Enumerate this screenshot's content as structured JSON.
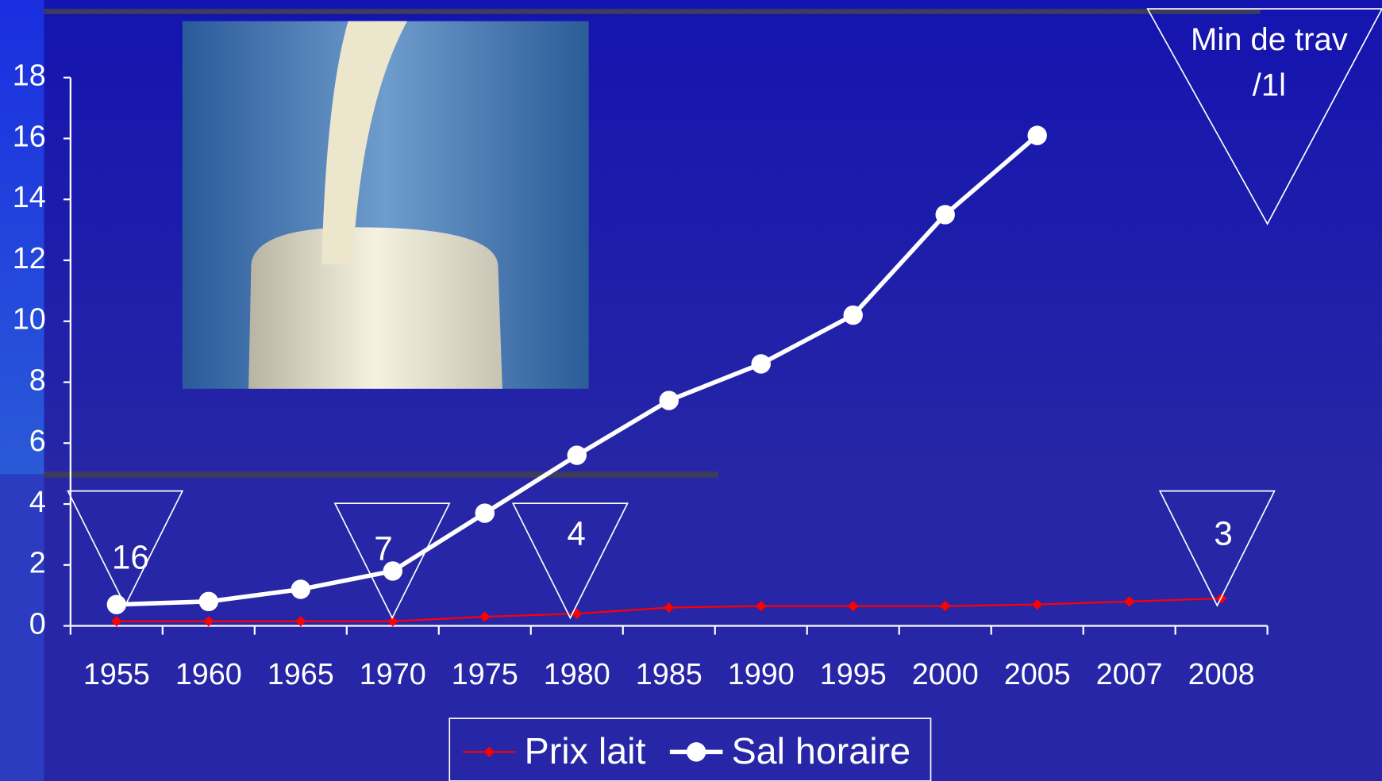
{
  "chart_data": {
    "type": "line",
    "categories": [
      "1955",
      "1960",
      "1965",
      "1970",
      "1975",
      "1980",
      "1985",
      "1990",
      "1995",
      "2000",
      "2005",
      "2007",
      "2008"
    ],
    "series": [
      {
        "name": "Prix lait",
        "color": "#ff0000",
        "marker": "diamond",
        "values": [
          0.15,
          0.15,
          0.15,
          0.15,
          0.3,
          0.4,
          0.6,
          0.65,
          0.65,
          0.65,
          0.7,
          0.8,
          0.9
        ]
      },
      {
        "name": "Sal horaire",
        "color": "#ffffff",
        "marker": "circle",
        "values": [
          0.7,
          0.8,
          1.2,
          1.8,
          3.7,
          5.6,
          7.4,
          8.6,
          10.2,
          13.5,
          16.1,
          null,
          null
        ]
      }
    ],
    "ylim": [
      0,
      18
    ],
    "yticks": [
      0,
      2,
      4,
      6,
      8,
      10,
      12,
      14,
      16,
      18
    ],
    "callouts": [
      "16",
      "7",
      "4",
      "3"
    ],
    "note": [
      "Min de trav",
      "/1l"
    ],
    "legend": "bottom"
  }
}
